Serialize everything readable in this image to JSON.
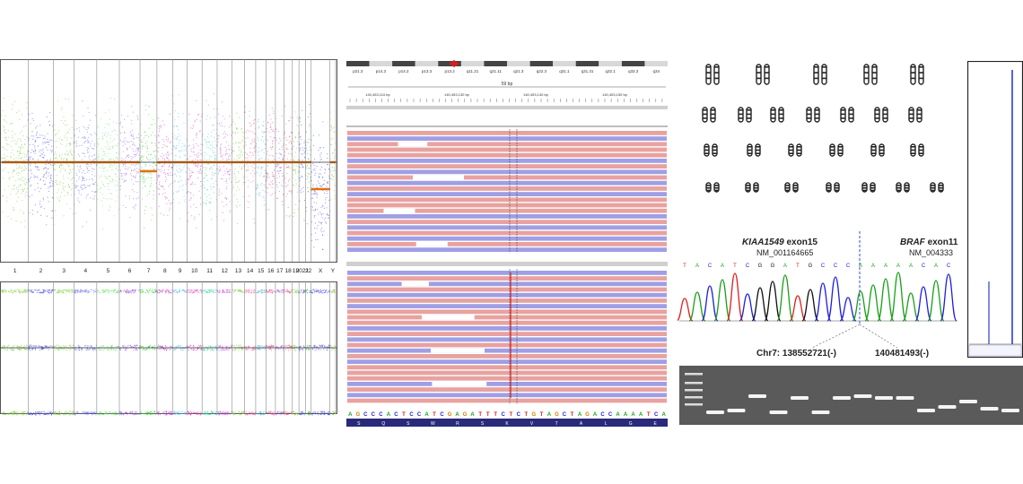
{
  "cnv": {
    "chromosomes": [
      "1",
      "2",
      "3",
      "4",
      "5",
      "6",
      "7",
      "8",
      "9",
      "10",
      "11",
      "12",
      "13",
      "14",
      "15",
      "16",
      "17",
      "18",
      "19",
      "2021",
      "22",
      "X",
      "Y"
    ]
  },
  "igv": {
    "bands": [
      "p21.3",
      "p14.3",
      "p14.2",
      "p13.3",
      "p13.2",
      "q11.21",
      "q21.11",
      "q21.3",
      "q22.3",
      "q31.1",
      "q31.31",
      "q32.1",
      "q33.3",
      "q34"
    ],
    "span_label": "59 bp",
    "coords": [
      "140,453,110 bp",
      "140,453,130 bp",
      "140,453,140 bp",
      "140,453,150 bp"
    ],
    "sequence": "A G C C C A C T C C A T C G A G A T T T C T C T G T A G C T A G A C C A A A A T C A",
    "aminoacids": "S Q S W R S K V T A L G E"
  },
  "fusion": {
    "gene_left": "KIAA1549",
    "exon_left": "exon15",
    "nm_left": "NM_001164665",
    "gene_right": "BRAF",
    "exon_right": "exon11",
    "nm_right": "NM_004333",
    "bases": "T A C A T C G G A T G C C C A A A A A C A C",
    "breakpoint_left": "Chr7: 138552721(-)",
    "breakpoint_right": "140481493(-)"
  },
  "colors": {
    "read_red": "#e8a2a0",
    "read_blue": "#9f9fe6"
  }
}
